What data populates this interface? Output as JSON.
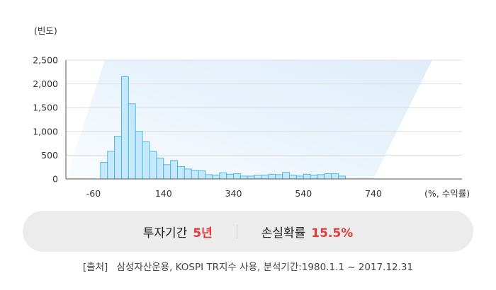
{
  "chart_data": {
    "type": "bar",
    "ylabel": "(빈도)",
    "xunit": "(%, 수익률)",
    "yticks": [
      "2,500",
      "2,000",
      "1,500",
      "1,000",
      "500",
      "0"
    ],
    "ytick_values": [
      2500,
      2000,
      1500,
      1000,
      500,
      0
    ],
    "xticks": [
      "-60",
      "140",
      "340",
      "540",
      "740"
    ],
    "xtick_values": [
      -60,
      140,
      340,
      540,
      740
    ],
    "ylim": [
      0,
      2500
    ],
    "grid": true,
    "bin_width": 20,
    "bin_start": -40,
    "values": [
      350,
      580,
      900,
      2150,
      1580,
      1000,
      780,
      580,
      440,
      300,
      390,
      260,
      210,
      180,
      170,
      90,
      80,
      130,
      100,
      110,
      60,
      60,
      80,
      80,
      100,
      90,
      140,
      80,
      60,
      100,
      80,
      90,
      110,
      110,
      60
    ]
  },
  "summary": {
    "period_label": "투자기간",
    "period_value": "5년",
    "loss_label": "손실확률",
    "loss_value": "15.5%"
  },
  "source": {
    "prefix": "[출처]",
    "text": "삼성자산운용, KOSPI TR지수 사용, 분석기간:1980.1.1 ~ 2017.12.31"
  },
  "colors": {
    "bar_fill": "#c5e9fb",
    "bar_stroke": "#4db8e8",
    "highlight": "#e23a3a"
  }
}
